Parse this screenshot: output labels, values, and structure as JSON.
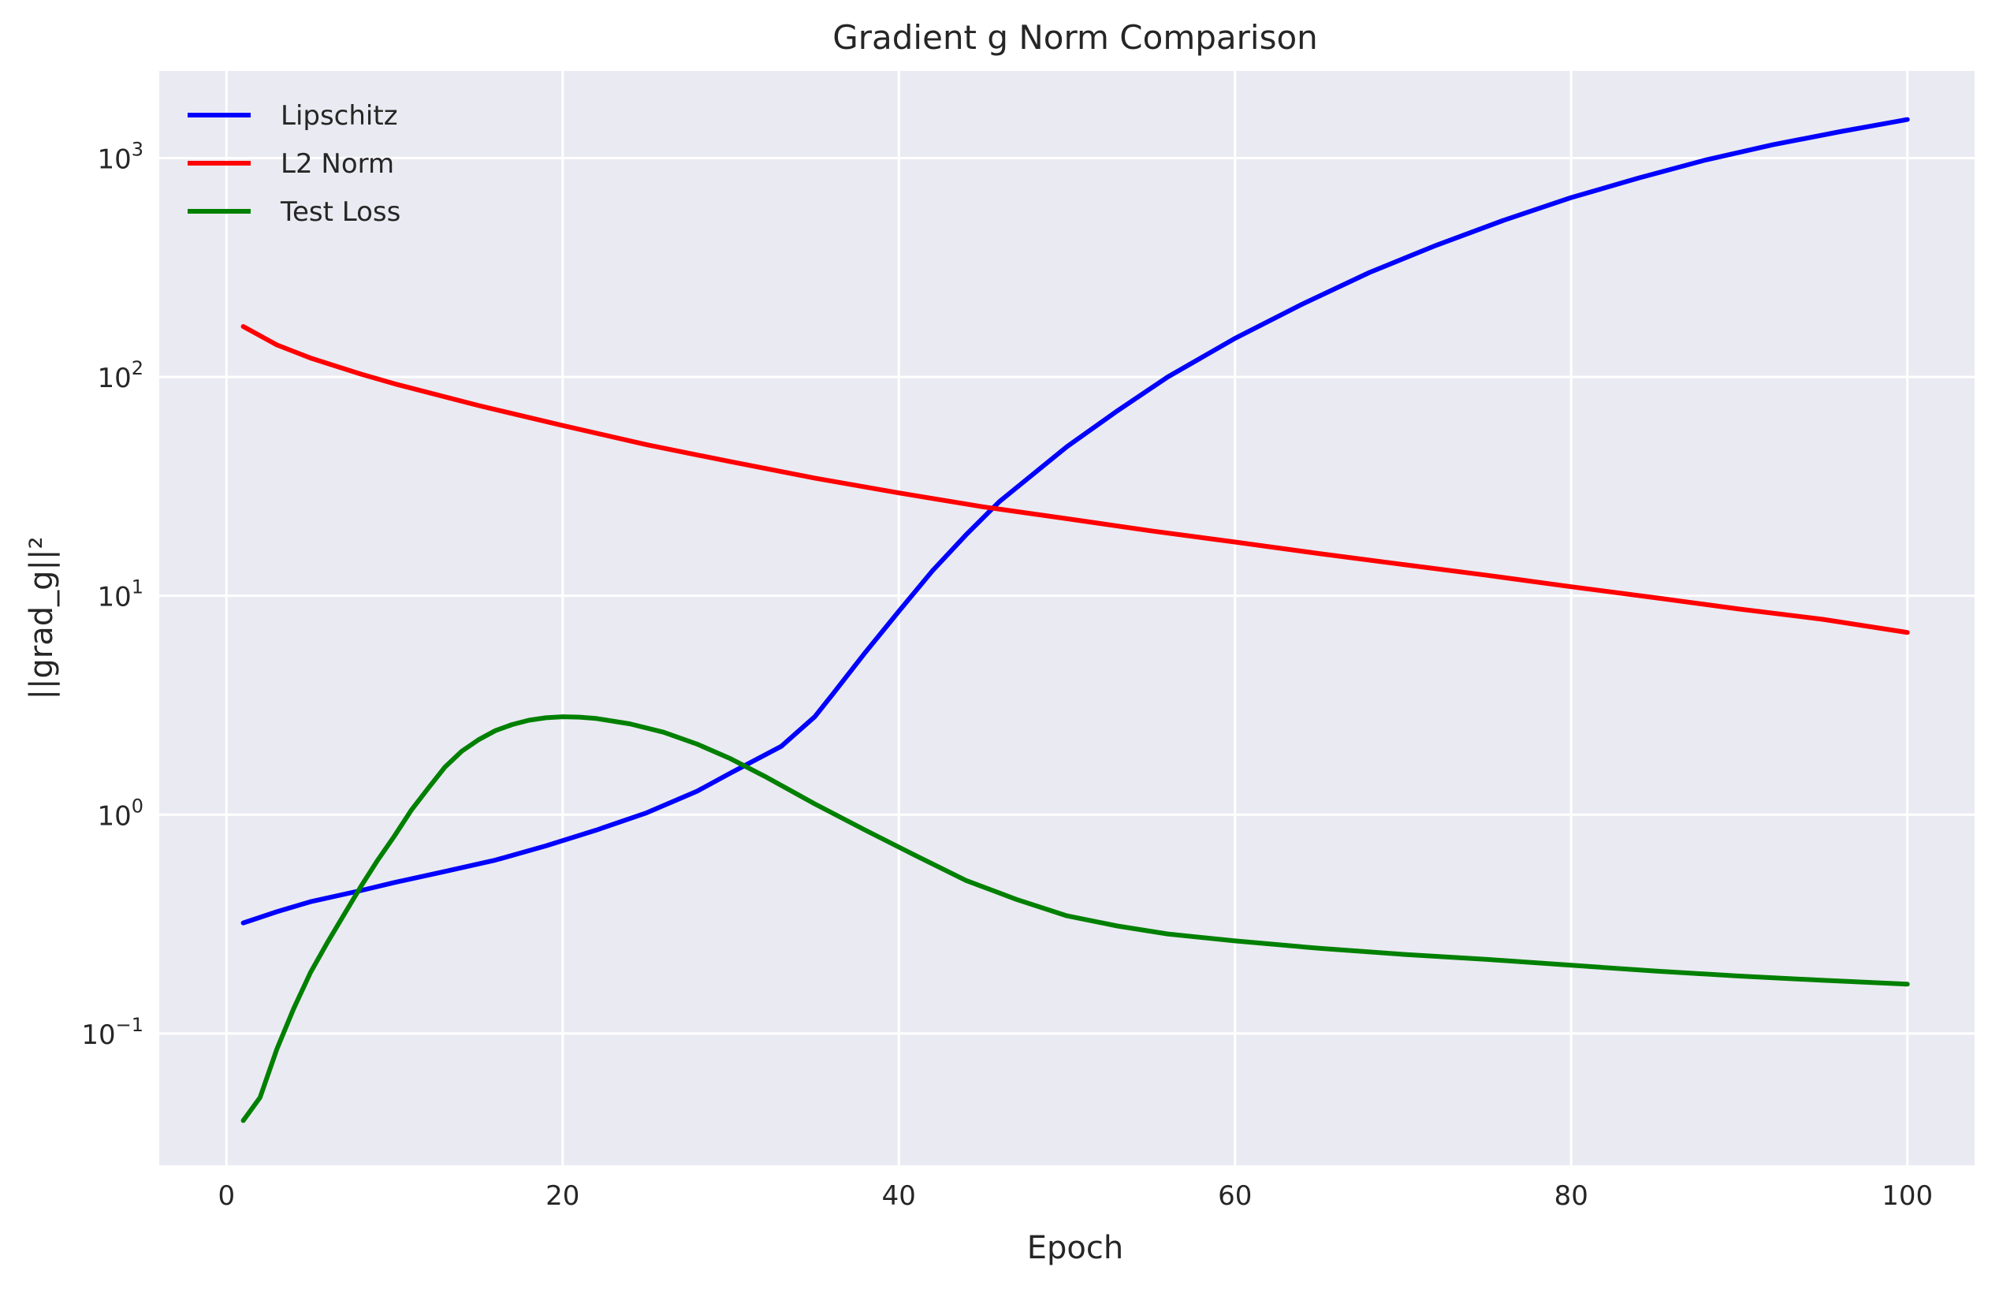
{
  "chart_data": {
    "type": "line",
    "title": "Gradient g Norm Comparison",
    "xlabel": "Epoch",
    "ylabel": "||grad_g||²",
    "yscale": "log",
    "xlim": [
      -4,
      104
    ],
    "ylim": [
      0.025,
      2500
    ],
    "x_ticks": [
      {
        "value": 0,
        "label": "0"
      },
      {
        "value": 20,
        "label": "20"
      },
      {
        "value": 40,
        "label": "40"
      },
      {
        "value": 60,
        "label": "60"
      },
      {
        "value": 80,
        "label": "80"
      },
      {
        "value": 100,
        "label": "100"
      }
    ],
    "y_ticks": [
      {
        "value": 0.1,
        "base": "10",
        "exp": "−1"
      },
      {
        "value": 1,
        "base": "10",
        "exp": "0"
      },
      {
        "value": 10,
        "base": "10",
        "exp": "1"
      },
      {
        "value": 100,
        "base": "10",
        "exp": "2"
      },
      {
        "value": 1000,
        "base": "10",
        "exp": "3"
      }
    ],
    "grid": true,
    "legend_position": "top-left",
    "background": "#eaeaf2",
    "series": [
      {
        "name": "Lipschitz",
        "color": "#0000ff",
        "points": [
          [
            1,
            0.32
          ],
          [
            3,
            0.36
          ],
          [
            5,
            0.4
          ],
          [
            8,
            0.45
          ],
          [
            10,
            0.49
          ],
          [
            13,
            0.55
          ],
          [
            16,
            0.62
          ],
          [
            19,
            0.72
          ],
          [
            22,
            0.85
          ],
          [
            25,
            1.02
          ],
          [
            28,
            1.28
          ],
          [
            30,
            1.55
          ],
          [
            33,
            2.05
          ],
          [
            35,
            2.8
          ],
          [
            36,
            3.5
          ],
          [
            38,
            5.5
          ],
          [
            40,
            8.5
          ],
          [
            42,
            13
          ],
          [
            44,
            19
          ],
          [
            46,
            27
          ],
          [
            48,
            36
          ],
          [
            50,
            48
          ],
          [
            53,
            70
          ],
          [
            56,
            100
          ],
          [
            60,
            150
          ],
          [
            64,
            215
          ],
          [
            68,
            300
          ],
          [
            72,
            400
          ],
          [
            76,
            520
          ],
          [
            80,
            660
          ],
          [
            84,
            810
          ],
          [
            88,
            980
          ],
          [
            92,
            1150
          ],
          [
            96,
            1320
          ],
          [
            100,
            1500
          ]
        ]
      },
      {
        "name": "L2 Norm",
        "color": "#ff0000",
        "points": [
          [
            1,
            170
          ],
          [
            3,
            140
          ],
          [
            5,
            122
          ],
          [
            8,
            103
          ],
          [
            10,
            93
          ],
          [
            15,
            74
          ],
          [
            20,
            60
          ],
          [
            25,
            49
          ],
          [
            30,
            41
          ],
          [
            35,
            34.5
          ],
          [
            40,
            29.5
          ],
          [
            45,
            25.5
          ],
          [
            50,
            22.5
          ],
          [
            55,
            19.8
          ],
          [
            60,
            17.6
          ],
          [
            65,
            15.6
          ],
          [
            70,
            13.9
          ],
          [
            75,
            12.4
          ],
          [
            80,
            11
          ],
          [
            85,
            9.8
          ],
          [
            90,
            8.7
          ],
          [
            95,
            7.8
          ],
          [
            100,
            6.8
          ]
        ]
      },
      {
        "name": "Test Loss",
        "color": "#008000",
        "points": [
          [
            1,
            0.04
          ],
          [
            2,
            0.051
          ],
          [
            3,
            0.085
          ],
          [
            4,
            0.13
          ],
          [
            5,
            0.19
          ],
          [
            6,
            0.26
          ],
          [
            7,
            0.35
          ],
          [
            8,
            0.47
          ],
          [
            9,
            0.62
          ],
          [
            10,
            0.8
          ],
          [
            11,
            1.05
          ],
          [
            12,
            1.32
          ],
          [
            13,
            1.65
          ],
          [
            14,
            1.95
          ],
          [
            15,
            2.2
          ],
          [
            16,
            2.42
          ],
          [
            17,
            2.58
          ],
          [
            18,
            2.7
          ],
          [
            19,
            2.77
          ],
          [
            20,
            2.8
          ],
          [
            21,
            2.79
          ],
          [
            22,
            2.75
          ],
          [
            24,
            2.6
          ],
          [
            26,
            2.38
          ],
          [
            28,
            2.1
          ],
          [
            30,
            1.8
          ],
          [
            32,
            1.5
          ],
          [
            35,
            1.12
          ],
          [
            38,
            0.85
          ],
          [
            41,
            0.65
          ],
          [
            44,
            0.5
          ],
          [
            47,
            0.41
          ],
          [
            50,
            0.345
          ],
          [
            53,
            0.31
          ],
          [
            56,
            0.285
          ],
          [
            60,
            0.265
          ],
          [
            65,
            0.245
          ],
          [
            70,
            0.23
          ],
          [
            75,
            0.218
          ],
          [
            80,
            0.205
          ],
          [
            85,
            0.193
          ],
          [
            90,
            0.183
          ],
          [
            95,
            0.175
          ],
          [
            100,
            0.168
          ]
        ]
      }
    ]
  }
}
